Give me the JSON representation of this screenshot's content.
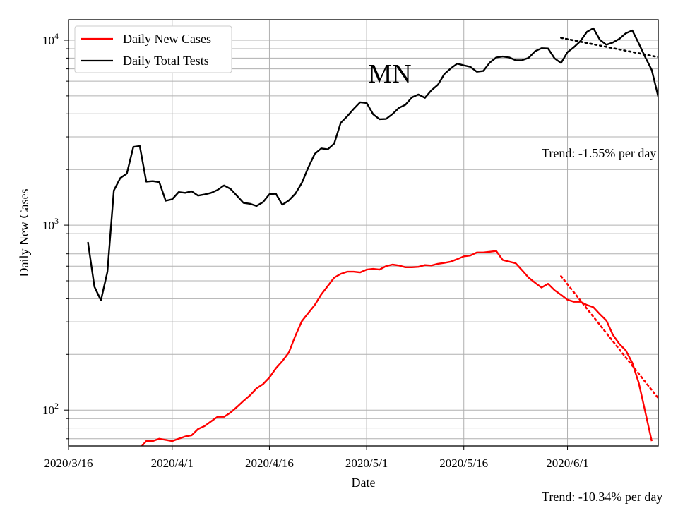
{
  "chart_data": {
    "type": "line",
    "annotation": "MN",
    "xlabel": "Date",
    "ylabel": "Daily New Cases",
    "y_scale": "log",
    "ylim": [
      64,
      12900
    ],
    "xlim": [
      "2020-03-16",
      "2020-06-15"
    ],
    "grid": true,
    "legend_placement": "top-left",
    "x_tick_labels": [
      "2020/3/16",
      "2020/4/1",
      "2020/4/16",
      "2020/5/1",
      "2020/5/16",
      "2020/6/1"
    ],
    "x_ticks": [
      "2020-03-16",
      "2020-04-01",
      "2020-04-16",
      "2020-05-01",
      "2020-05-16",
      "2020-06-01"
    ],
    "y_tick_labels": [
      {
        "value": 100,
        "base": "10",
        "exp": "2"
      },
      {
        "value": 1000,
        "base": "10",
        "exp": "3"
      },
      {
        "value": 10000,
        "base": "10",
        "exp": "4"
      }
    ],
    "series": [
      {
        "name": "Daily New Cases",
        "color": "#ff0000",
        "style": "solid",
        "points": [
          [
            "2020-03-27",
            62
          ],
          [
            "2020-03-28",
            68
          ],
          [
            "2020-03-29",
            68
          ],
          [
            "2020-03-30",
            70
          ],
          [
            "2020-03-31",
            69
          ],
          [
            "2020-04-01",
            68
          ],
          [
            "2020-04-02",
            70
          ],
          [
            "2020-04-03",
            72
          ],
          [
            "2020-04-04",
            73
          ],
          [
            "2020-04-05",
            79
          ],
          [
            "2020-04-06",
            82
          ],
          [
            "2020-04-07",
            87
          ],
          [
            "2020-04-08",
            92
          ],
          [
            "2020-04-09",
            92
          ],
          [
            "2020-04-10",
            97
          ],
          [
            "2020-04-11",
            104
          ],
          [
            "2020-04-12",
            112
          ],
          [
            "2020-04-13",
            120
          ],
          [
            "2020-04-14",
            131
          ],
          [
            "2020-04-15",
            138
          ],
          [
            "2020-04-16",
            150
          ],
          [
            "2020-04-17",
            168
          ],
          [
            "2020-04-18",
            184
          ],
          [
            "2020-04-19",
            205
          ],
          [
            "2020-04-20",
            252
          ],
          [
            "2020-04-21",
            302
          ],
          [
            "2020-04-22",
            335
          ],
          [
            "2020-04-23",
            370
          ],
          [
            "2020-04-24",
            422
          ],
          [
            "2020-04-25",
            468
          ],
          [
            "2020-04-26",
            520
          ],
          [
            "2020-04-27",
            545
          ],
          [
            "2020-04-28",
            560
          ],
          [
            "2020-04-29",
            560
          ],
          [
            "2020-04-30",
            555
          ],
          [
            "2020-05-01",
            575
          ],
          [
            "2020-05-02",
            580
          ],
          [
            "2020-05-03",
            575
          ],
          [
            "2020-05-04",
            600
          ],
          [
            "2020-05-05",
            612
          ],
          [
            "2020-05-06",
            605
          ],
          [
            "2020-05-07",
            592
          ],
          [
            "2020-05-08",
            592
          ],
          [
            "2020-05-09",
            595
          ],
          [
            "2020-05-10",
            608
          ],
          [
            "2020-05-11",
            605
          ],
          [
            "2020-05-12",
            618
          ],
          [
            "2020-05-13",
            625
          ],
          [
            "2020-05-14",
            635
          ],
          [
            "2020-05-15",
            655
          ],
          [
            "2020-05-16",
            678
          ],
          [
            "2020-05-17",
            685
          ],
          [
            "2020-05-18",
            712
          ],
          [
            "2020-05-19",
            712
          ],
          [
            "2020-05-20",
            718
          ],
          [
            "2020-05-21",
            725
          ],
          [
            "2020-05-22",
            648
          ],
          [
            "2020-05-23",
            635
          ],
          [
            "2020-05-24",
            622
          ],
          [
            "2020-05-25",
            570
          ],
          [
            "2020-05-26",
            520
          ],
          [
            "2020-05-27",
            488
          ],
          [
            "2020-05-28",
            460
          ],
          [
            "2020-05-29",
            482
          ],
          [
            "2020-05-30",
            445
          ],
          [
            "2020-05-31",
            420
          ],
          [
            "2020-06-01",
            395
          ],
          [
            "2020-06-02",
            385
          ],
          [
            "2020-06-03",
            385
          ],
          [
            "2020-06-04",
            370
          ],
          [
            "2020-06-05",
            360
          ],
          [
            "2020-06-06",
            330
          ],
          [
            "2020-06-07",
            305
          ],
          [
            "2020-06-08",
            255
          ],
          [
            "2020-06-09",
            228
          ],
          [
            "2020-06-10",
            210
          ],
          [
            "2020-06-11",
            180
          ],
          [
            "2020-06-12",
            140
          ],
          [
            "2020-06-13",
            98
          ],
          [
            "2020-06-14",
            68
          ]
        ]
      },
      {
        "name": "Daily Total Tests",
        "color": "#000000",
        "style": "solid",
        "points": [
          [
            "2020-03-19",
            810
          ],
          [
            "2020-03-20",
            465
          ],
          [
            "2020-03-21",
            392
          ],
          [
            "2020-03-22",
            560
          ],
          [
            "2020-03-23",
            1540
          ],
          [
            "2020-03-24",
            1800
          ],
          [
            "2020-03-25",
            1900
          ],
          [
            "2020-03-26",
            2650
          ],
          [
            "2020-03-27",
            2680
          ],
          [
            "2020-03-28",
            1720
          ],
          [
            "2020-03-29",
            1730
          ],
          [
            "2020-03-30",
            1710
          ],
          [
            "2020-03-31",
            1355
          ],
          [
            "2020-04-01",
            1380
          ],
          [
            "2020-04-02",
            1510
          ],
          [
            "2020-04-03",
            1495
          ],
          [
            "2020-04-04",
            1525
          ],
          [
            "2020-04-05",
            1445
          ],
          [
            "2020-04-06",
            1465
          ],
          [
            "2020-04-07",
            1495
          ],
          [
            "2020-04-08",
            1550
          ],
          [
            "2020-04-09",
            1640
          ],
          [
            "2020-04-10",
            1570
          ],
          [
            "2020-04-11",
            1440
          ],
          [
            "2020-04-12",
            1320
          ],
          [
            "2020-04-13",
            1305
          ],
          [
            "2020-04-14",
            1270
          ],
          [
            "2020-04-15",
            1330
          ],
          [
            "2020-04-16",
            1470
          ],
          [
            "2020-04-17",
            1480
          ],
          [
            "2020-04-18",
            1290
          ],
          [
            "2020-04-19",
            1360
          ],
          [
            "2020-04-20",
            1480
          ],
          [
            "2020-04-21",
            1690
          ],
          [
            "2020-04-22",
            2050
          ],
          [
            "2020-04-23",
            2430
          ],
          [
            "2020-04-24",
            2600
          ],
          [
            "2020-04-25",
            2570
          ],
          [
            "2020-04-26",
            2760
          ],
          [
            "2020-04-27",
            3570
          ],
          [
            "2020-04-28",
            3880
          ],
          [
            "2020-04-29",
            4250
          ],
          [
            "2020-04-30",
            4620
          ],
          [
            "2020-05-01",
            4580
          ],
          [
            "2020-05-02",
            3980
          ],
          [
            "2020-05-03",
            3740
          ],
          [
            "2020-05-04",
            3750
          ],
          [
            "2020-05-05",
            3990
          ],
          [
            "2020-05-06",
            4310
          ],
          [
            "2020-05-07",
            4480
          ],
          [
            "2020-05-08",
            4910
          ],
          [
            "2020-05-09",
            5090
          ],
          [
            "2020-05-10",
            4880
          ],
          [
            "2020-05-11",
            5360
          ],
          [
            "2020-05-12",
            5740
          ],
          [
            "2020-05-13",
            6560
          ],
          [
            "2020-05-14",
            7050
          ],
          [
            "2020-05-15",
            7470
          ],
          [
            "2020-05-16",
            7310
          ],
          [
            "2020-05-17",
            7180
          ],
          [
            "2020-05-18",
            6750
          ],
          [
            "2020-05-19",
            6820
          ],
          [
            "2020-05-20",
            7560
          ],
          [
            "2020-05-21",
            8060
          ],
          [
            "2020-05-22",
            8160
          ],
          [
            "2020-05-23",
            8070
          ],
          [
            "2020-05-24",
            7790
          ],
          [
            "2020-05-25",
            7800
          ],
          [
            "2020-05-26",
            8030
          ],
          [
            "2020-05-27",
            8720
          ],
          [
            "2020-05-28",
            9050
          ],
          [
            "2020-05-29",
            9020
          ],
          [
            "2020-05-30",
            7980
          ],
          [
            "2020-05-31",
            7530
          ],
          [
            "2020-06-01",
            8620
          ],
          [
            "2020-06-02",
            9170
          ],
          [
            "2020-06-03",
            9890
          ],
          [
            "2020-06-04",
            11100
          ],
          [
            "2020-06-05",
            11600
          ],
          [
            "2020-06-06",
            10050
          ],
          [
            "2020-06-07",
            9450
          ],
          [
            "2020-06-08",
            9720
          ],
          [
            "2020-06-09",
            10170
          ],
          [
            "2020-06-10",
            10900
          ],
          [
            "2020-06-11",
            11300
          ],
          [
            "2020-06-12",
            9600
          ],
          [
            "2020-06-13",
            8100
          ],
          [
            "2020-06-14",
            6900
          ],
          [
            "2020-06-15",
            4950
          ]
        ]
      }
    ],
    "trend_lines": [
      {
        "series": "Daily Total Tests",
        "label": "Trend: -1.55% per day",
        "color": "#000000",
        "style": "dotted",
        "points": [
          [
            "2020-05-31",
            10300
          ],
          [
            "2020-06-15",
            8100
          ]
        ]
      },
      {
        "series": "Daily New Cases",
        "label": "Trend: -10.34% per day",
        "color": "#ff0000",
        "style": "dotted",
        "points": [
          [
            "2020-05-31",
            530
          ],
          [
            "2020-06-15",
            116
          ]
        ]
      }
    ]
  }
}
